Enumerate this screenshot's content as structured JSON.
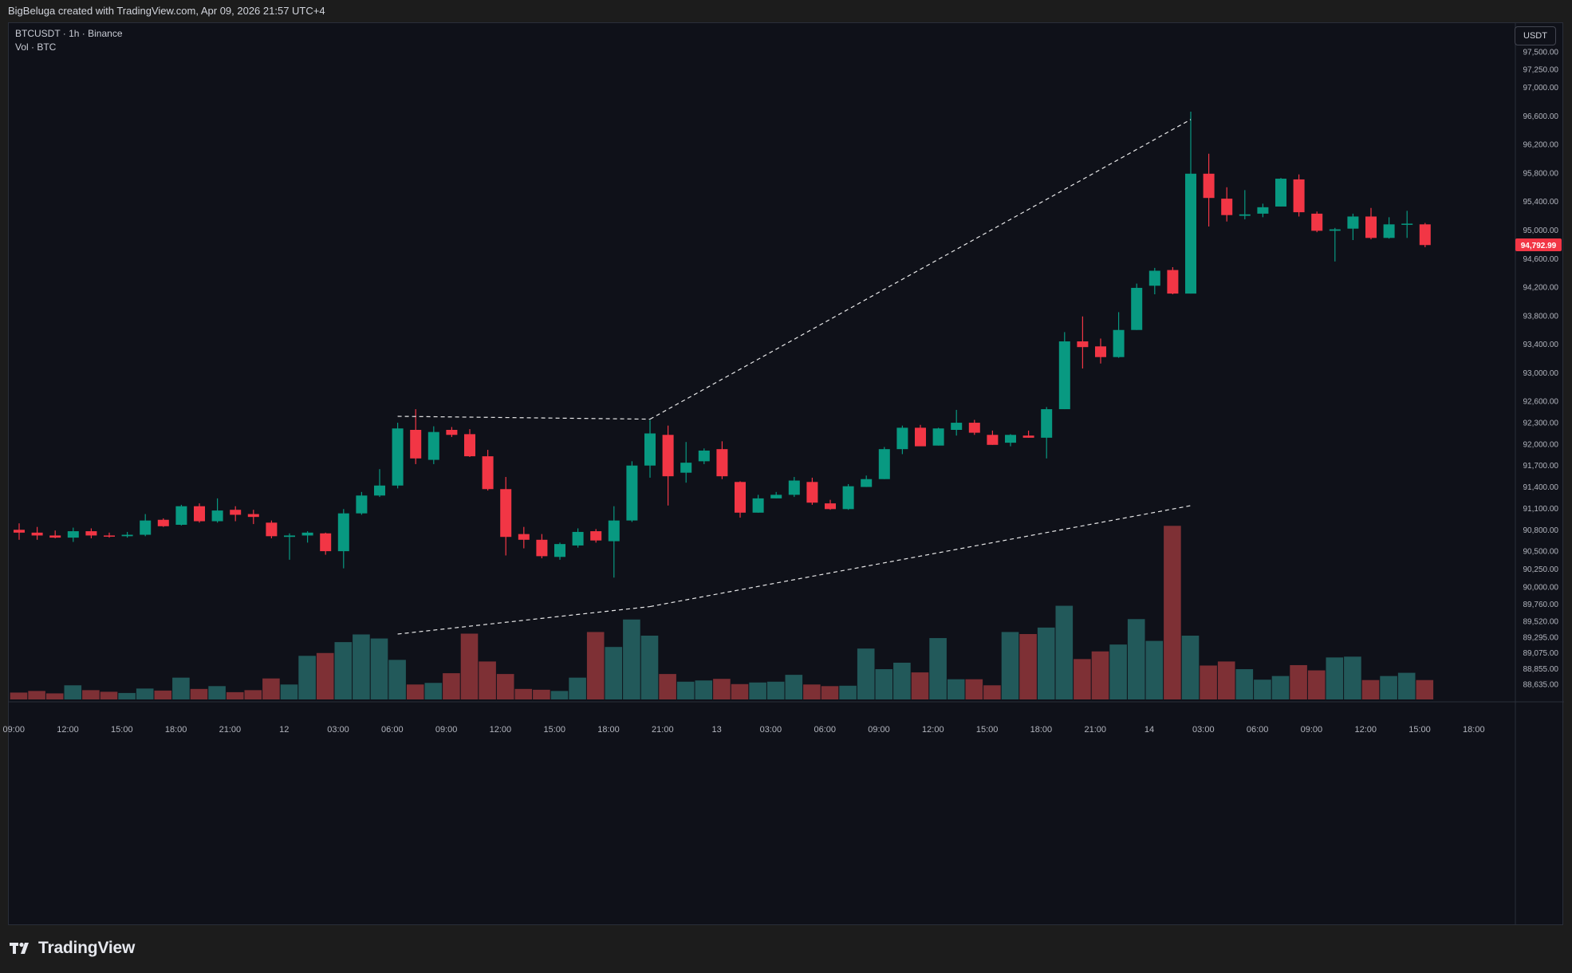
{
  "header": {
    "attribution": "BigBeluga created with TradingView.com, Apr 09, 2026 21:57 UTC+4"
  },
  "legend": {
    "symbol_line": "BTCUSDT · 1h · Binance",
    "volume_line": "Vol · BTC"
  },
  "currency_button": "USDT",
  "footer": {
    "brand": "TradingView"
  },
  "colors": {
    "background": "#0f1119",
    "bull": "#089981",
    "bear": "#f23645",
    "volume_bull": "#22595a",
    "volume_bear": "#7e3035",
    "annotation_line": "#ffffff",
    "price_tag": "#f23645"
  },
  "chart_data": {
    "type": "candlestick",
    "symbol": "BTCUSDT",
    "interval": "1h",
    "exchange": "Binance",
    "ylim": [
      88400,
      97900
    ],
    "price_axis_ticks": [
      "97,500.00",
      "97,250.00",
      "97,000.00",
      "96,600.00",
      "96,200.00",
      "95,800.00",
      "95,400.00",
      "95,000.00",
      "94,600.00",
      "94,200.00",
      "93,800.00",
      "93,400.00",
      "93,000.00",
      "92,600.00",
      "92,300.00",
      "92,000.00",
      "91,700.00",
      "91,400.00",
      "91,100.00",
      "90,800.00",
      "90,500.00",
      "90,250.00",
      "90,000.00",
      "89,760.00",
      "89,520.00",
      "89,295.00",
      "89,075.00",
      "88,855.00",
      "88,635.00"
    ],
    "time_axis_ticks": [
      "09:00",
      "12:00",
      "15:00",
      "18:00",
      "21:00",
      "12",
      "03:00",
      "06:00",
      "09:00",
      "12:00",
      "15:00",
      "18:00",
      "21:00",
      "13",
      "03:00",
      "06:00",
      "09:00",
      "12:00",
      "15:00",
      "18:00",
      "21:00",
      "14",
      "03:00",
      "06:00",
      "09:00",
      "12:00",
      "15:00",
      "18:00"
    ],
    "last_price": "94,792.99",
    "candles": [
      {
        "o": 90800,
        "h": 90890,
        "l": 90660,
        "c": 90760
      },
      {
        "o": 90760,
        "h": 90840,
        "l": 90660,
        "c": 90720
      },
      {
        "o": 90720,
        "h": 90790,
        "l": 90680,
        "c": 90690
      },
      {
        "o": 90690,
        "h": 90830,
        "l": 90630,
        "c": 90780
      },
      {
        "o": 90780,
        "h": 90820,
        "l": 90680,
        "c": 90720
      },
      {
        "o": 90720,
        "h": 90760,
        "l": 90690,
        "c": 90710
      },
      {
        "o": 90710,
        "h": 90770,
        "l": 90690,
        "c": 90730
      },
      {
        "o": 90730,
        "h": 91020,
        "l": 90710,
        "c": 90930
      },
      {
        "o": 90940,
        "h": 90960,
        "l": 90840,
        "c": 90850
      },
      {
        "o": 90870,
        "h": 91150,
        "l": 90860,
        "c": 91130
      },
      {
        "o": 91130,
        "h": 91170,
        "l": 90900,
        "c": 90920
      },
      {
        "o": 90920,
        "h": 91240,
        "l": 90900,
        "c": 91070
      },
      {
        "o": 91080,
        "h": 91130,
        "l": 90920,
        "c": 91010
      },
      {
        "o": 91020,
        "h": 91080,
        "l": 90880,
        "c": 90980
      },
      {
        "o": 90900,
        "h": 90930,
        "l": 90680,
        "c": 90710
      },
      {
        "o": 90700,
        "h": 90750,
        "l": 90380,
        "c": 90720
      },
      {
        "o": 90720,
        "h": 90780,
        "l": 90620,
        "c": 90760
      },
      {
        "o": 90750,
        "h": 90760,
        "l": 90450,
        "c": 90500
      },
      {
        "o": 90500,
        "h": 91090,
        "l": 90260,
        "c": 91030
      },
      {
        "o": 91030,
        "h": 91330,
        "l": 91010,
        "c": 91280
      },
      {
        "o": 91280,
        "h": 91650,
        "l": 91260,
        "c": 91420
      },
      {
        "o": 91420,
        "h": 92300,
        "l": 91380,
        "c": 92220
      },
      {
        "o": 92200,
        "h": 92490,
        "l": 91720,
        "c": 91800
      },
      {
        "o": 91780,
        "h": 92250,
        "l": 91720,
        "c": 92170
      },
      {
        "o": 92200,
        "h": 92240,
        "l": 92100,
        "c": 92130
      },
      {
        "o": 92140,
        "h": 92210,
        "l": 91820,
        "c": 91830
      },
      {
        "o": 91830,
        "h": 91920,
        "l": 91350,
        "c": 91370
      },
      {
        "o": 91370,
        "h": 91540,
        "l": 90440,
        "c": 90700
      },
      {
        "o": 90740,
        "h": 90840,
        "l": 90540,
        "c": 90660
      },
      {
        "o": 90660,
        "h": 90740,
        "l": 90400,
        "c": 90430
      },
      {
        "o": 90420,
        "h": 90620,
        "l": 90380,
        "c": 90600
      },
      {
        "o": 90580,
        "h": 90820,
        "l": 90550,
        "c": 90770
      },
      {
        "o": 90780,
        "h": 90810,
        "l": 90620,
        "c": 90650
      },
      {
        "o": 90640,
        "h": 91130,
        "l": 90130,
        "c": 90930
      },
      {
        "o": 90930,
        "h": 91760,
        "l": 90910,
        "c": 91700
      },
      {
        "o": 91700,
        "h": 92340,
        "l": 91530,
        "c": 92150
      },
      {
        "o": 92130,
        "h": 92260,
        "l": 91140,
        "c": 91550
      },
      {
        "o": 91600,
        "h": 92030,
        "l": 91460,
        "c": 91740
      },
      {
        "o": 91760,
        "h": 91940,
        "l": 91720,
        "c": 91910
      },
      {
        "o": 91930,
        "h": 92040,
        "l": 91510,
        "c": 91550
      },
      {
        "o": 91470,
        "h": 91480,
        "l": 90970,
        "c": 91040
      },
      {
        "o": 91040,
        "h": 91290,
        "l": 91040,
        "c": 91240
      },
      {
        "o": 91240,
        "h": 91330,
        "l": 91240,
        "c": 91290
      },
      {
        "o": 91290,
        "h": 91540,
        "l": 91260,
        "c": 91490
      },
      {
        "o": 91470,
        "h": 91530,
        "l": 91150,
        "c": 91180
      },
      {
        "o": 91170,
        "h": 91220,
        "l": 91080,
        "c": 91090
      },
      {
        "o": 91090,
        "h": 91440,
        "l": 91080,
        "c": 91410
      },
      {
        "o": 91400,
        "h": 91560,
        "l": 91400,
        "c": 91510
      },
      {
        "o": 91510,
        "h": 91960,
        "l": 91510,
        "c": 91930
      },
      {
        "o": 91930,
        "h": 92260,
        "l": 91860,
        "c": 92230
      },
      {
        "o": 92230,
        "h": 92270,
        "l": 91980,
        "c": 91970
      },
      {
        "o": 91980,
        "h": 92230,
        "l": 91980,
        "c": 92220
      },
      {
        "o": 92200,
        "h": 92480,
        "l": 92120,
        "c": 92300
      },
      {
        "o": 92300,
        "h": 92340,
        "l": 92130,
        "c": 92160
      },
      {
        "o": 92130,
        "h": 92190,
        "l": 91990,
        "c": 91990
      },
      {
        "o": 92020,
        "h": 92140,
        "l": 91970,
        "c": 92130
      },
      {
        "o": 92120,
        "h": 92190,
        "l": 92090,
        "c": 92090
      },
      {
        "o": 92090,
        "h": 92520,
        "l": 91800,
        "c": 92490
      },
      {
        "o": 92490,
        "h": 93570,
        "l": 92490,
        "c": 93440
      },
      {
        "o": 93440,
        "h": 93790,
        "l": 93060,
        "c": 93360
      },
      {
        "o": 93370,
        "h": 93480,
        "l": 93130,
        "c": 93220
      },
      {
        "o": 93220,
        "h": 93850,
        "l": 93210,
        "c": 93600
      },
      {
        "o": 93600,
        "h": 94250,
        "l": 93600,
        "c": 94190
      },
      {
        "o": 94220,
        "h": 94470,
        "l": 94100,
        "c": 94430
      },
      {
        "o": 94440,
        "h": 94480,
        "l": 94100,
        "c": 94110
      },
      {
        "o": 94110,
        "h": 96660,
        "l": 94110,
        "c": 95790
      },
      {
        "o": 95790,
        "h": 96070,
        "l": 95050,
        "c": 95450
      },
      {
        "o": 95440,
        "h": 95600,
        "l": 95120,
        "c": 95210
      },
      {
        "o": 95200,
        "h": 95560,
        "l": 95150,
        "c": 95220
      },
      {
        "o": 95230,
        "h": 95370,
        "l": 95180,
        "c": 95320
      },
      {
        "o": 95330,
        "h": 95730,
        "l": 95330,
        "c": 95720
      },
      {
        "o": 95710,
        "h": 95780,
        "l": 95190,
        "c": 95250
      },
      {
        "o": 95230,
        "h": 95260,
        "l": 94970,
        "c": 94990
      },
      {
        "o": 94990,
        "h": 95030,
        "l": 94560,
        "c": 95010
      },
      {
        "o": 95020,
        "h": 95230,
        "l": 94860,
        "c": 95190
      },
      {
        "o": 95190,
        "h": 95310,
        "l": 94870,
        "c": 94890
      },
      {
        "o": 94890,
        "h": 95180,
        "l": 94880,
        "c": 95080
      },
      {
        "o": 95080,
        "h": 95270,
        "l": 94890,
        "c": 95090
      },
      {
        "o": 95080,
        "h": 95100,
        "l": 94760,
        "c": 94790
      }
    ],
    "volume": [
      0.85,
      1.05,
      0.75,
      1.75,
      1.15,
      0.95,
      0.8,
      1.35,
      1.1,
      2.7,
      1.3,
      1.65,
      0.9,
      1.15,
      2.6,
      1.85,
      5.4,
      5.75,
      7.1,
      8.05,
      7.55,
      4.9,
      1.85,
      2.05,
      3.25,
      8.15,
      4.7,
      3.15,
      1.3,
      1.2,
      1.05,
      2.7,
      8.35,
      6.5,
      9.9,
      7.9,
      3.15,
      2.2,
      2.35,
      2.55,
      1.9,
      2.1,
      2.2,
      3.05,
      1.85,
      1.65,
      1.7,
      6.3,
      3.75,
      4.55,
      3.35,
      7.6,
      2.5,
      2.5,
      1.75,
      8.35,
      8.1,
      8.9,
      11.6,
      5.0,
      5.95,
      6.8,
      9.95,
      7.25,
      21.5,
      7.9,
      4.2,
      4.7,
      3.75,
      2.45,
      2.9,
      4.25,
      3.6,
      5.2,
      5.3,
      2.4,
      2.9,
      3.3,
      2.4
    ],
    "volume_ylim": [
      0,
      24
    ],
    "annotations": [
      {
        "type": "dashed-line",
        "pane": "price",
        "from": {
          "bar": 21,
          "price": 92390
        },
        "to": {
          "bar": 35,
          "price": 92350
        }
      },
      {
        "type": "dashed-line",
        "pane": "price",
        "from": {
          "bar": 35,
          "price": 92350
        },
        "to": {
          "bar": 65,
          "price": 96550
        }
      },
      {
        "type": "dashed-line",
        "pane": "volume",
        "from": {
          "bar": 21,
          "volume": 8.1
        },
        "to": {
          "bar": 35,
          "volume": 11.5
        }
      },
      {
        "type": "dashed-line",
        "pane": "volume",
        "from": {
          "bar": 35,
          "volume": 11.5
        },
        "to": {
          "bar": 65,
          "volume": 24
        }
      }
    ]
  }
}
